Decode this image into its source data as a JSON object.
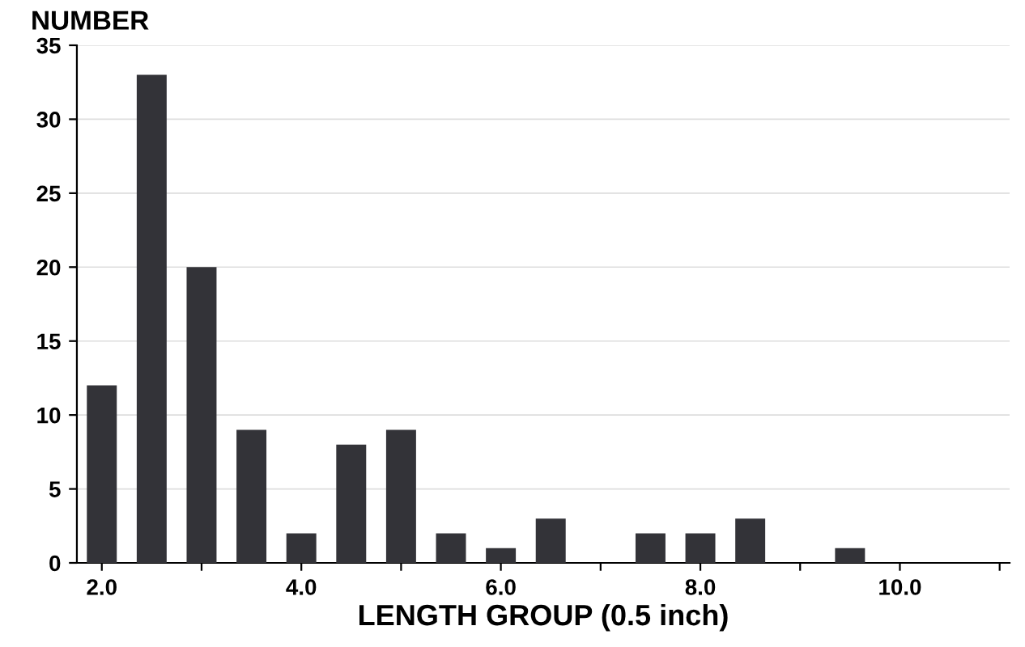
{
  "chart_data": {
    "type": "bar",
    "ylabel": "NUMBER",
    "xlabel": "LENGTH GROUP (0.5 inch)",
    "x": [
      2.0,
      2.5,
      3.0,
      3.5,
      4.0,
      4.5,
      5.0,
      5.5,
      6.0,
      6.5,
      7.5,
      8.0,
      8.5,
      9.5
    ],
    "values": [
      12,
      33,
      20,
      9,
      2,
      8,
      9,
      2,
      1,
      3,
      2,
      2,
      3,
      1
    ],
    "color": "#333338",
    "xlim": [
      1.75,
      11.1
    ],
    "xticks": [
      {
        "value": 2.0,
        "label": "2.0"
      },
      {
        "value": 3,
        "label": null
      },
      {
        "value": 4.0,
        "label": "4.0"
      },
      {
        "value": 5,
        "label": null
      },
      {
        "value": 6.0,
        "label": "6.0"
      },
      {
        "value": 7,
        "label": null
      },
      {
        "value": 8.0,
        "label": "8.0"
      },
      {
        "value": 9,
        "label": null
      },
      {
        "value": 10.0,
        "label": "10.0"
      },
      {
        "value": 11,
        "label": null
      }
    ],
    "ylim": [
      0,
      35
    ],
    "yticks": [
      0,
      5,
      10,
      15,
      20,
      25,
      30,
      35
    ],
    "grid": "y"
  }
}
